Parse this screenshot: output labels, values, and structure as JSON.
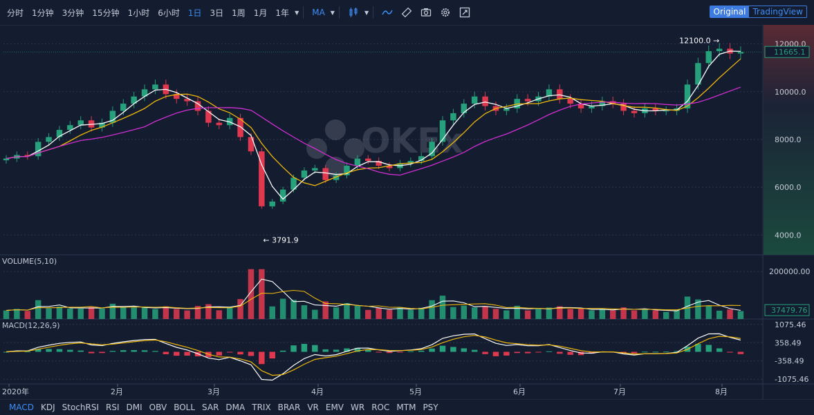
{
  "toolbar": {
    "timeframes": [
      "分时",
      "1分钟",
      "3分钟",
      "15分钟",
      "1小时",
      "6小时",
      "1日",
      "3日",
      "1周",
      "1月",
      "1年"
    ],
    "active_timeframe": "1日",
    "study_label": "MA",
    "icons": [
      "chevron-down-icon",
      "candle-type-icon",
      "chevron-down-icon",
      "line-tool-icon",
      "ruler-icon",
      "camera-icon",
      "gear-icon",
      "fullscreen-icon"
    ],
    "view_original": "Original",
    "view_tradingview": "TradingView"
  },
  "watermark": "OKEx",
  "colors": {
    "up": "#26a17b",
    "down": "#e0394f",
    "ma_white": "#ffffff",
    "ma_yellow": "#f0b90b",
    "ma_magenta": "#d12fd1",
    "accent": "#3d8ef5"
  },
  "chart_data": [
    {
      "type": "candlestick",
      "pane": "price",
      "x_ticks": [
        "2020年",
        "2月",
        "3月",
        "4月",
        "5月",
        "6月",
        "7月",
        "8月"
      ],
      "y_ticks": [
        "12000.0",
        "10000.0",
        "8000.0",
        "6000.0",
        "4000.0"
      ],
      "ylim": [
        3400,
        12800
      ],
      "close": [
        7200,
        7350,
        7300,
        7900,
        8100,
        8400,
        8600,
        8800,
        8500,
        8700,
        9200,
        9500,
        9800,
        10100,
        10300,
        9900,
        9700,
        9600,
        9200,
        8700,
        8600,
        8900,
        8100,
        7500,
        5200,
        5400,
        5900,
        6400,
        6700,
        6800,
        6300,
        6500,
        6900,
        7200,
        7100,
        6900,
        6800,
        7000,
        7100,
        7300,
        7900,
        8800,
        9100,
        9500,
        9800,
        9400,
        9200,
        9300,
        9700,
        9600,
        9800,
        10100,
        9700,
        9500,
        9300,
        9400,
        9600,
        9500,
        9200,
        9100,
        9300,
        9200,
        9200,
        9300,
        10300,
        11200,
        11700,
        11800,
        11600,
        11665
      ],
      "current_price_label": "11665.1",
      "high_annotation": "12100.0",
      "low_annotation": "3791.9",
      "ma_series": [
        "MA5",
        "MA10",
        "MA30"
      ]
    },
    {
      "type": "bar",
      "pane": "volume",
      "title": "VOLUME(5,10)",
      "y_ticks": [
        "200000.00"
      ],
      "ylim": [
        0,
        250000
      ],
      "current_value_label": "37479.76"
    },
    {
      "type": "bar",
      "pane": "macd",
      "title": "MACD(12,26,9)",
      "y_ticks": [
        "1075.46",
        "358.49",
        "-358.49",
        "-1075.46"
      ],
      "ylim": [
        -1150,
        1150
      ]
    }
  ],
  "indicators": [
    "MACD",
    "KDJ",
    "StochRSI",
    "RSI",
    "DMI",
    "OBV",
    "BOLL",
    "SAR",
    "DMA",
    "TRIX",
    "BRAR",
    "VR",
    "EMV",
    "WR",
    "ROC",
    "MTM",
    "PSY"
  ],
  "active_indicator": "MACD"
}
